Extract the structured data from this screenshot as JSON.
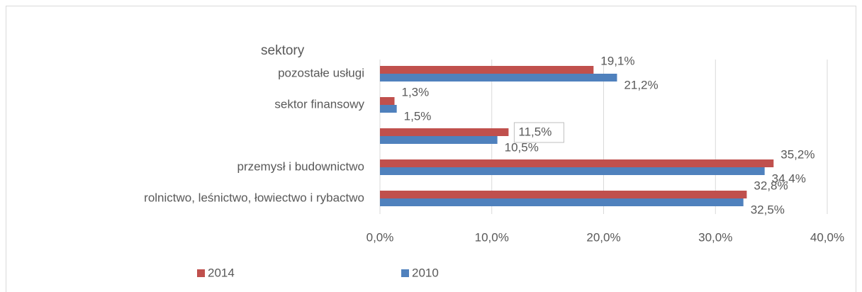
{
  "chart_data": {
    "type": "bar",
    "orientation": "horizontal",
    "title": "sektory",
    "categories": [
      "pozostałe usługi",
      "sektor finansowy",
      null,
      "przemysł i budownictwo",
      "rolnictwo, leśnictwo, łowiectwo i rybactwo"
    ],
    "series": [
      {
        "name": "2014",
        "color": "#c0504d",
        "values": [
          19.1,
          1.3,
          11.5,
          35.2,
          32.8
        ],
        "value_labels": [
          "19,1%",
          "1,3%",
          "11,5%",
          "35,2%",
          "32,8%"
        ]
      },
      {
        "name": "2010",
        "color": "#4f81bd",
        "values": [
          21.2,
          1.5,
          10.5,
          34.4,
          32.5
        ],
        "value_labels": [
          "21,2%",
          "1,5%",
          "10,5%",
          "34,4%",
          "32,5%"
        ]
      }
    ],
    "xlim": [
      0,
      40
    ],
    "xticks": [
      {
        "value": 0,
        "label": "0,0%"
      },
      {
        "value": 10,
        "label": "10,0%"
      },
      {
        "value": 20,
        "label": "20,0%"
      },
      {
        "value": 30,
        "label": "30,0%"
      },
      {
        "value": 40,
        "label": "40,0%"
      }
    ],
    "grid": true,
    "legend": "bottom"
  }
}
